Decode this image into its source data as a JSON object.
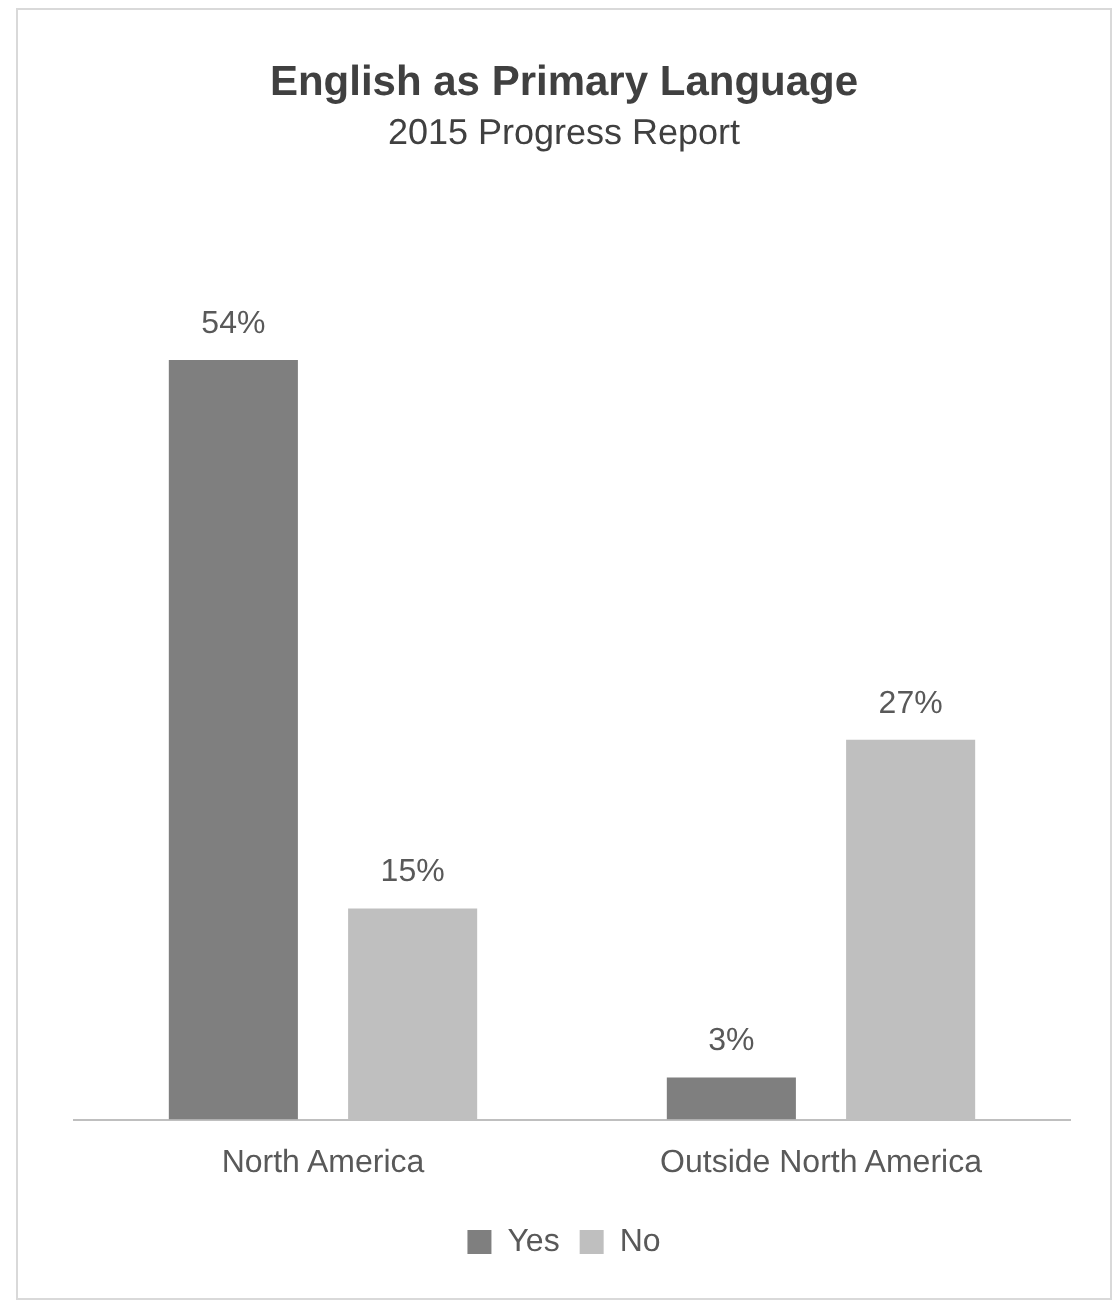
{
  "chart_data": {
    "type": "bar",
    "title": "English as Primary Language",
    "subtitle": "2015 Progress Report",
    "categories": [
      "North America",
      "Outside North America"
    ],
    "series": [
      {
        "name": "Yes",
        "color": "#7f7f7f",
        "values": [
          54,
          3
        ],
        "value_labels": [
          "54%",
          "3%"
        ]
      },
      {
        "name": "No",
        "color": "#bfbfbf",
        "values": [
          15,
          27
        ],
        "value_labels": [
          "15%",
          "27%"
        ]
      }
    ],
    "grid": false,
    "legend": "bottom",
    "tick_labels": "x"
  }
}
